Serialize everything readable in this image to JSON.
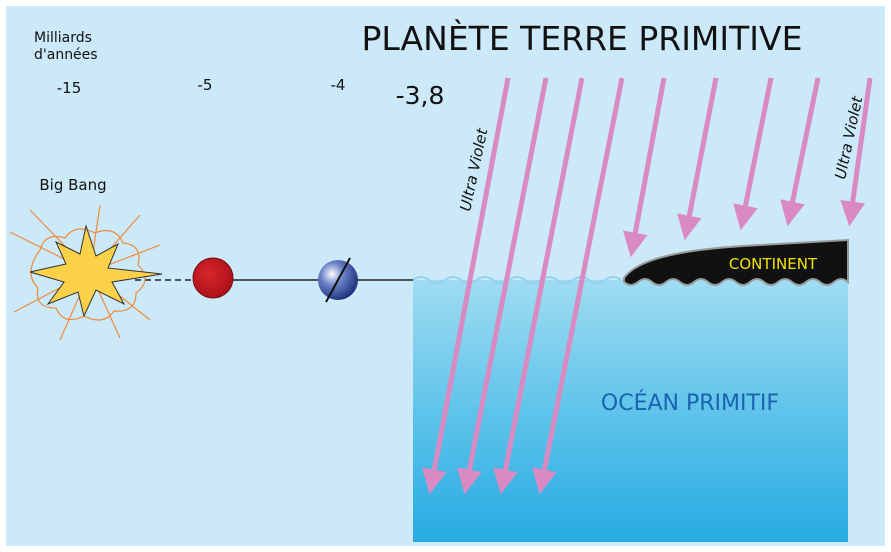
{
  "title": "PLANÈTE TERRE PRIMITIVE",
  "axis_label": [
    "Milliards",
    "d'années"
  ],
  "timeline": [
    "-15",
    "-5",
    "-4",
    "-3,8"
  ],
  "big_bang": "Big Bang",
  "uv_labels": [
    "Ultra Violet",
    "Ultra Violet"
  ],
  "continent": "CONTINENT",
  "ocean": "OCÉAN PRIMITIF"
}
